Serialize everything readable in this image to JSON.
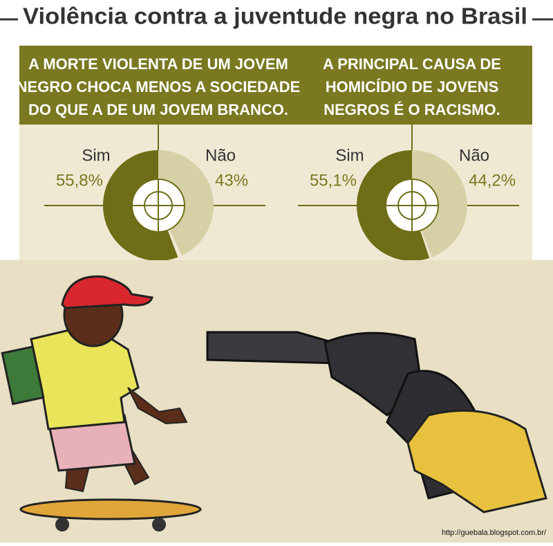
{
  "header": {
    "title": "Violência contra a juventude negra no Brasil"
  },
  "chart_data": [
    {
      "type": "pie",
      "title": [
        "A MORTE VIOLENTA DE UM JOVEM",
        "NEGRO CHOCA MENOS A SOCIEDADE",
        "DO QUE A DE UM JOVEM BRANCO."
      ],
      "categories": [
        "Sim",
        "Não"
      ],
      "values": [
        55.8,
        43
      ],
      "value_labels": [
        "55,8%",
        "43%"
      ],
      "colors": [
        "#6f6d17",
        "#d5d0a6"
      ]
    },
    {
      "type": "pie",
      "title": [
        "A PRINCIPAL CAUSA DE",
        "HOMICÍDIO DE JOVENS",
        "NEGROS É O RACISMO."
      ],
      "categories": [
        "Sim",
        "Não"
      ],
      "values": [
        55.1,
        44.2
      ],
      "value_labels": [
        "55,1%",
        "44,2%"
      ],
      "colors": [
        "#6f6d17",
        "#d5d0a6"
      ]
    }
  ],
  "footer": {
    "url": "http://guebala.blogspot.com.br/"
  }
}
